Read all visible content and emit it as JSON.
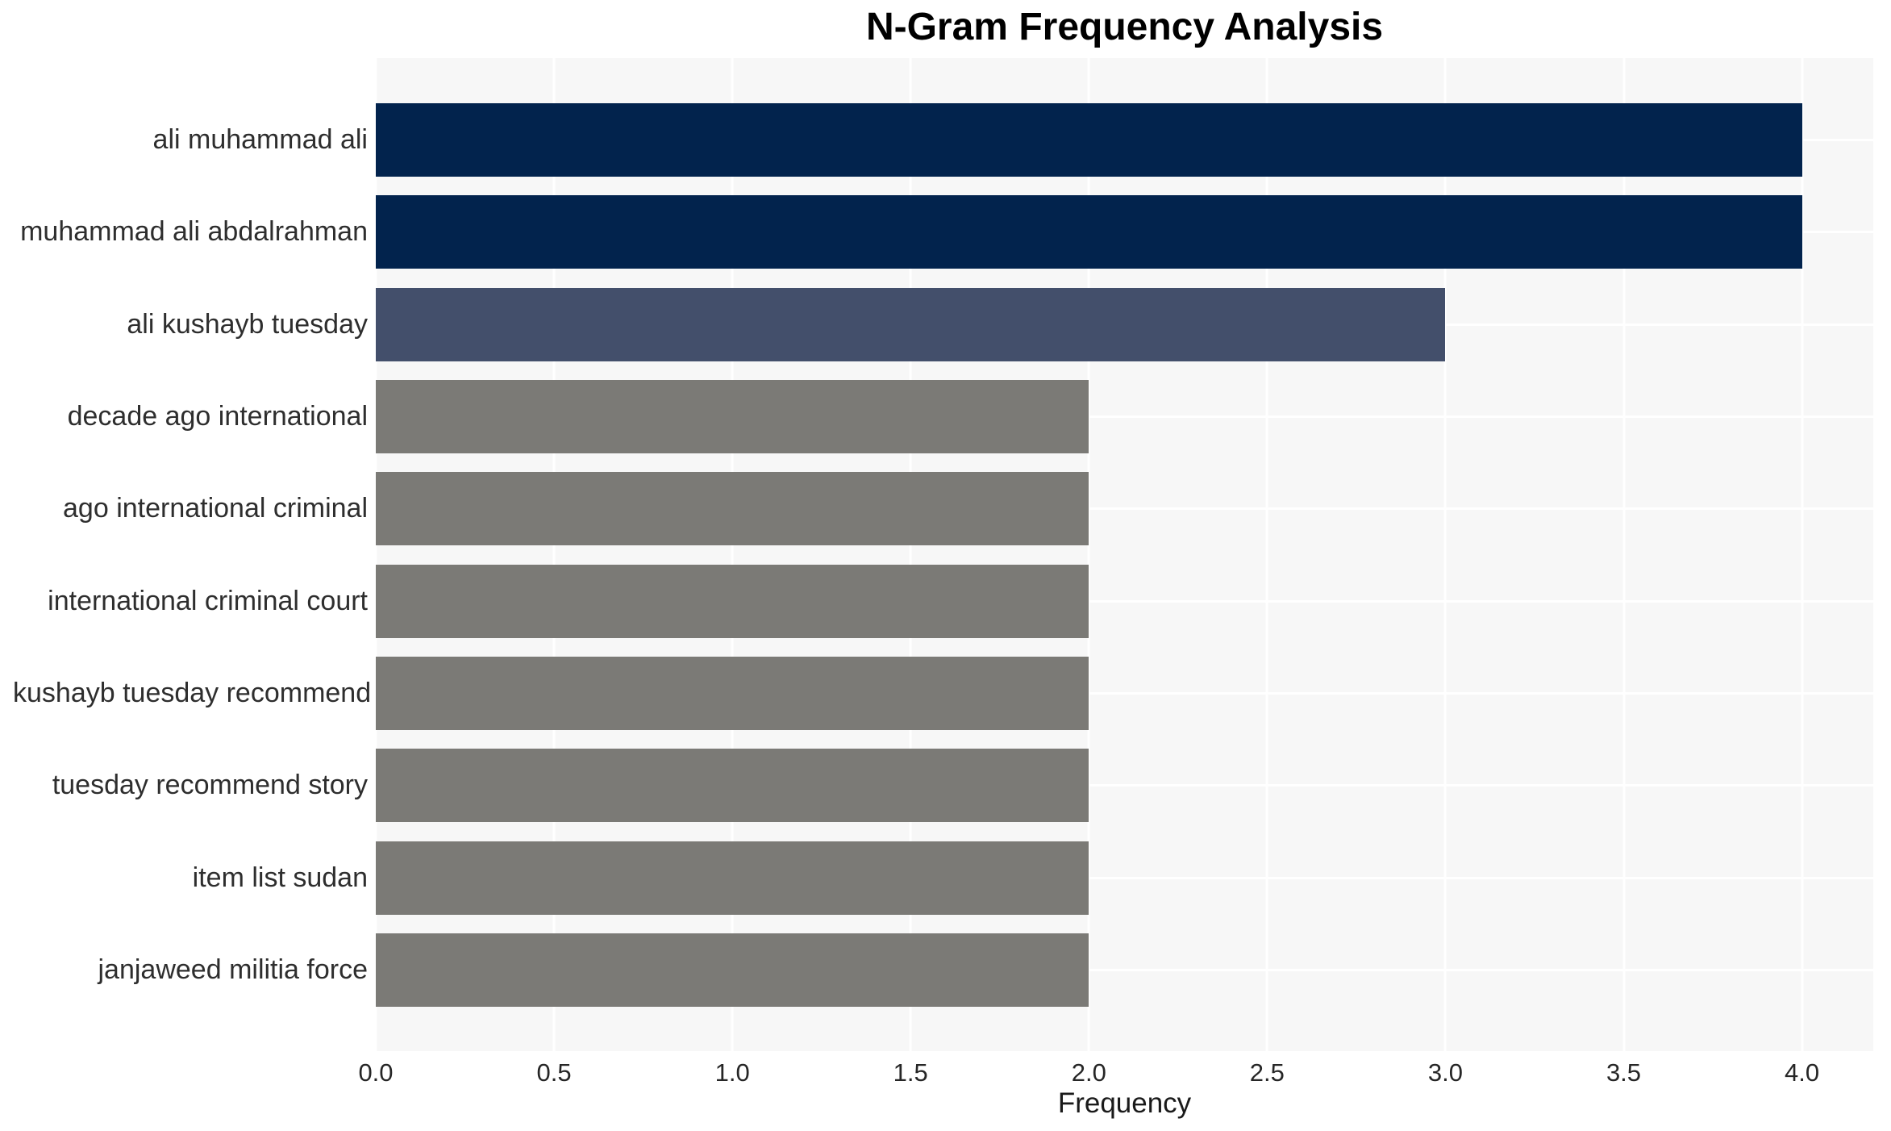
{
  "chart_data": {
    "type": "bar",
    "orientation": "horizontal",
    "title": "N-Gram Frequency Analysis",
    "xlabel": "Frequency",
    "ylabel": "",
    "categories": [
      "ali muhammad ali",
      "muhammad ali abdalrahman",
      "ali kushayb tuesday",
      "decade ago international",
      "ago international criminal",
      "international criminal court",
      "kushayb tuesday recommend",
      "tuesday recommend story",
      "item list sudan",
      "janjaweed militia force"
    ],
    "values": [
      4,
      4,
      3,
      2,
      2,
      2,
      2,
      2,
      2,
      2
    ],
    "bar_colors": [
      "#02234d",
      "#02234d",
      "#434f6b",
      "#7b7a76",
      "#7b7a76",
      "#7b7a76",
      "#7b7a76",
      "#7b7a76",
      "#7b7a76",
      "#7b7a76"
    ],
    "xlim": [
      0,
      4.2
    ],
    "xticks": [
      0,
      0.5,
      1,
      1.5,
      2,
      2.5,
      3,
      3.5,
      4
    ],
    "xtick_labels": [
      "0.0",
      "0.5",
      "1.0",
      "1.5",
      "2.0",
      "2.5",
      "3.0",
      "3.5",
      "4.0"
    ],
    "grid": true,
    "legend": false,
    "colors": {
      "figure_background": "#ffffff",
      "plot_background": "#f7f7f7",
      "gridline": "#ffffff",
      "tick_text": "#262626",
      "label_text": "#2e2e2e",
      "title_text": "#000000"
    }
  }
}
